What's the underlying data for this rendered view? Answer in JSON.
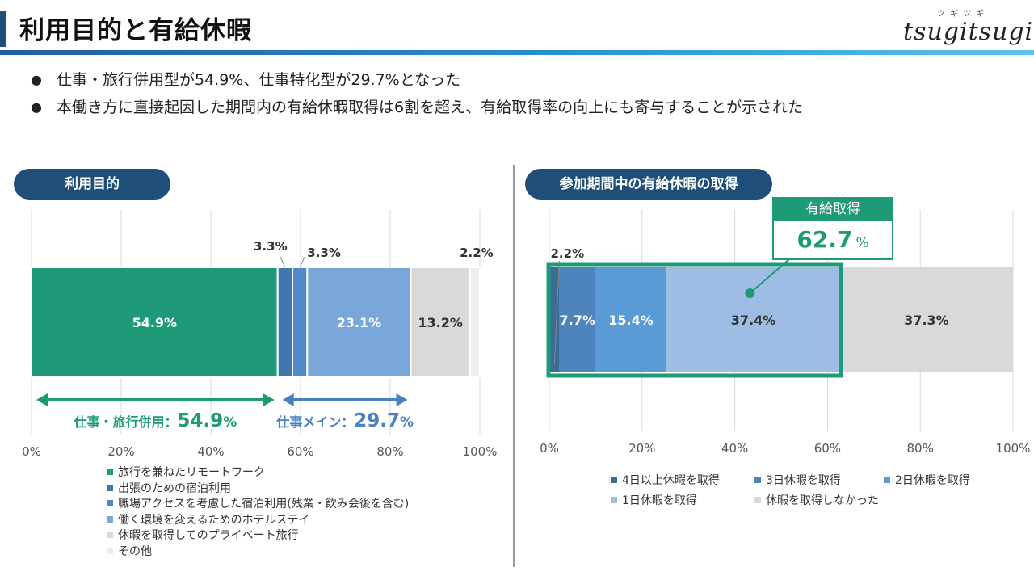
{
  "header": {
    "title": "利用目的と有給休暇",
    "logo_text": "tsugitsugi",
    "logo_kana": "ツギツギ"
  },
  "bullets": [
    "仕事・旅行併用型が54.9%、仕事特化型が29.7%となった",
    "本働き方に直接起因した期間内の有給休暇取得は6割を超え、有給取得率の向上にも寄与することが示された"
  ],
  "left_panel": {
    "heading": "利用目的",
    "brackets": [
      {
        "label": "仕事・旅行併用：",
        "value": "54.9",
        "unit": "%",
        "from": 0,
        "to": 54.9,
        "color": "#1e9a78"
      },
      {
        "label": "仕事メイン：",
        "value": "29.7",
        "unit": "%",
        "from": 54.9,
        "to": 84.6,
        "color": "#4a7fc1"
      }
    ]
  },
  "right_panel": {
    "heading": "参加期間中の有給休暇の取得",
    "callout_title": "有給取得",
    "callout_value": "62.7",
    "callout_unit": "%"
  },
  "chart_data": [
    {
      "type": "bar",
      "orientation": "horizontal-stacked-100",
      "title": "利用目的",
      "xlim": [
        0,
        100
      ],
      "xticks": [
        "0%",
        "20%",
        "40%",
        "60%",
        "80%",
        "100%"
      ],
      "grid": true,
      "legend_position": "bottom-left",
      "series": [
        {
          "name": "旅行を兼ねたリモートワーク",
          "value": 54.9,
          "label": "54.9%",
          "color": "#1e9a78"
        },
        {
          "name": "出張のための宿泊利用",
          "value": 3.3,
          "label": "3.3%",
          "color": "#3f77ad"
        },
        {
          "name": "職場アクセスを考慮した宿泊利用(残業・飲み会後を含む)",
          "value": 3.3,
          "label": "3.3%",
          "color": "#4f89c7"
        },
        {
          "name": "働く環境を変えるためのホテルステイ",
          "value": 23.1,
          "label": "23.1%",
          "color": "#7aa7d9"
        },
        {
          "name": "休暇を取得してのプライベート旅行",
          "value": 13.2,
          "label": "13.2%",
          "color": "#d9d9d9"
        },
        {
          "name": "その他",
          "value": 2.2,
          "label": "2.2%",
          "color": "#ededed"
        }
      ]
    },
    {
      "type": "bar",
      "orientation": "horizontal-stacked-100",
      "title": "参加期間中の有給休暇の取得",
      "xlim": [
        0,
        100
      ],
      "xticks": [
        "0%",
        "20%",
        "40%",
        "60%",
        "80%",
        "100%"
      ],
      "grid": true,
      "legend_position": "bottom",
      "series": [
        {
          "name": "4日以上休暇を取得",
          "value": 2.2,
          "label": "2.2%",
          "color": "#3c6d99"
        },
        {
          "name": "3日休暇を取得",
          "value": 7.7,
          "label": "7.7%",
          "color": "#4d84bb"
        },
        {
          "name": "2日休暇を取得",
          "value": 15.4,
          "label": "15.4%",
          "color": "#5b9bd5"
        },
        {
          "name": "1日休暇を取得",
          "value": 37.4,
          "label": "37.4%",
          "color": "#9dbde4"
        },
        {
          "name": "休暇を取得しなかった",
          "value": 37.3,
          "label": "37.3%",
          "color": "#d9d9d9"
        }
      ]
    }
  ]
}
